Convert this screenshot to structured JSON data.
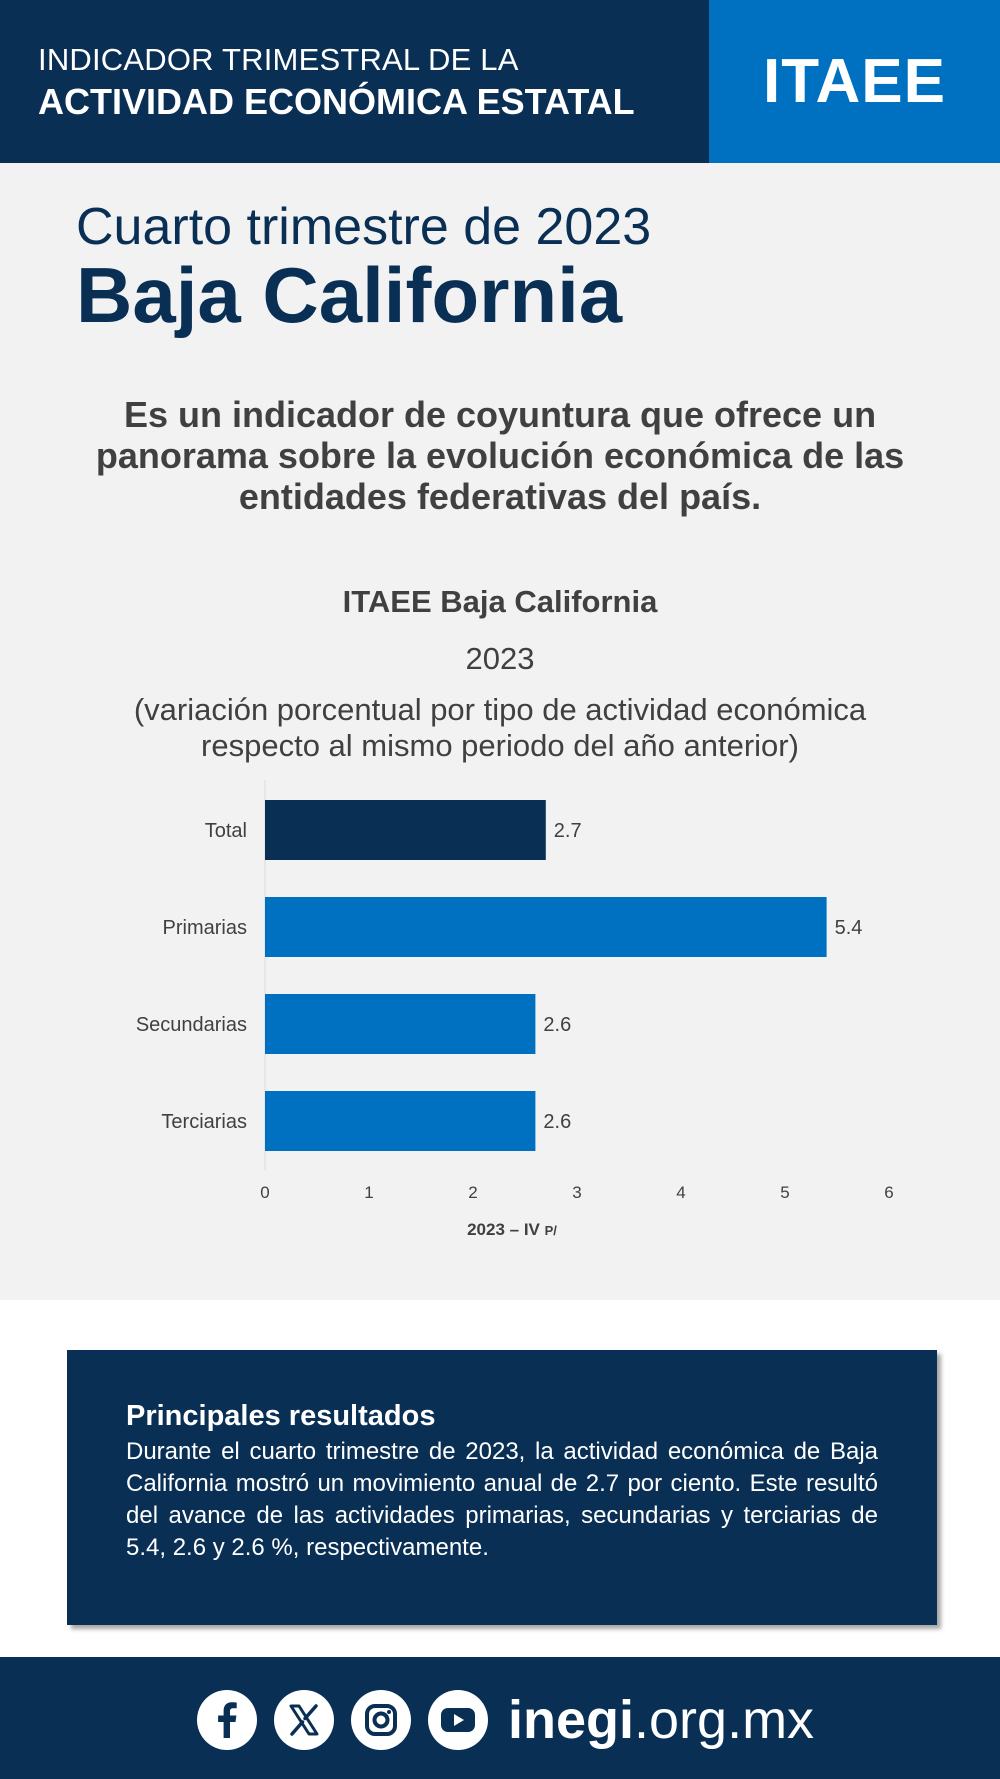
{
  "header": {
    "line1": "INDICADOR TRIMESTRAL DE LA",
    "line2": "ACTIVIDAD ECONÓMICA ESTATAL",
    "brand": "ITAEE"
  },
  "period": "Cuarto trimestre de 2023",
  "state": "Baja California",
  "intro": "Es un indicador de coyuntura que ofrece un panorama sobre la evolución económica de las entidades federativas del país.",
  "colors": {
    "navy": "#0a2f55",
    "blue": "#0070c0",
    "background": "#f2f2f2"
  },
  "chart_data": {
    "type": "bar",
    "orientation": "horizontal",
    "title": "ITAEE Baja California",
    "year": "2023",
    "subtitle": "(variación porcentual por tipo de actividad económica respecto al mismo periodo del año anterior)",
    "categories": [
      "Total",
      "Primarias",
      "Secundarias",
      "Terciarias"
    ],
    "values": [
      2.7,
      5.4,
      2.6,
      2.6
    ],
    "bar_colors": [
      "#0a2f55",
      "#0070c0",
      "#0070c0",
      "#0070c0"
    ],
    "xticks": [
      "0",
      "1",
      "2",
      "3",
      "4",
      "5",
      "6"
    ],
    "xlim": [
      0,
      6
    ],
    "xlabel": "2023 – IV",
    "xlabel_suffix": "P/",
    "grid": false
  },
  "results": {
    "title": "Principales resultados",
    "text": "Durante el cuarto trimestre de 2023, la actividad económica de Baja California mostró un movimiento anual de 2.7 por ciento. Este resultó del avance de las actividades primarias, secundarias y terciarias de 5.4, 2.6 y 2.6 %, respectivamente."
  },
  "footer": {
    "icons": [
      "facebook-icon",
      "x-icon",
      "instagram-icon",
      "youtube-icon"
    ],
    "site_bold": "inegi",
    "site_rest": ".org.mx"
  }
}
